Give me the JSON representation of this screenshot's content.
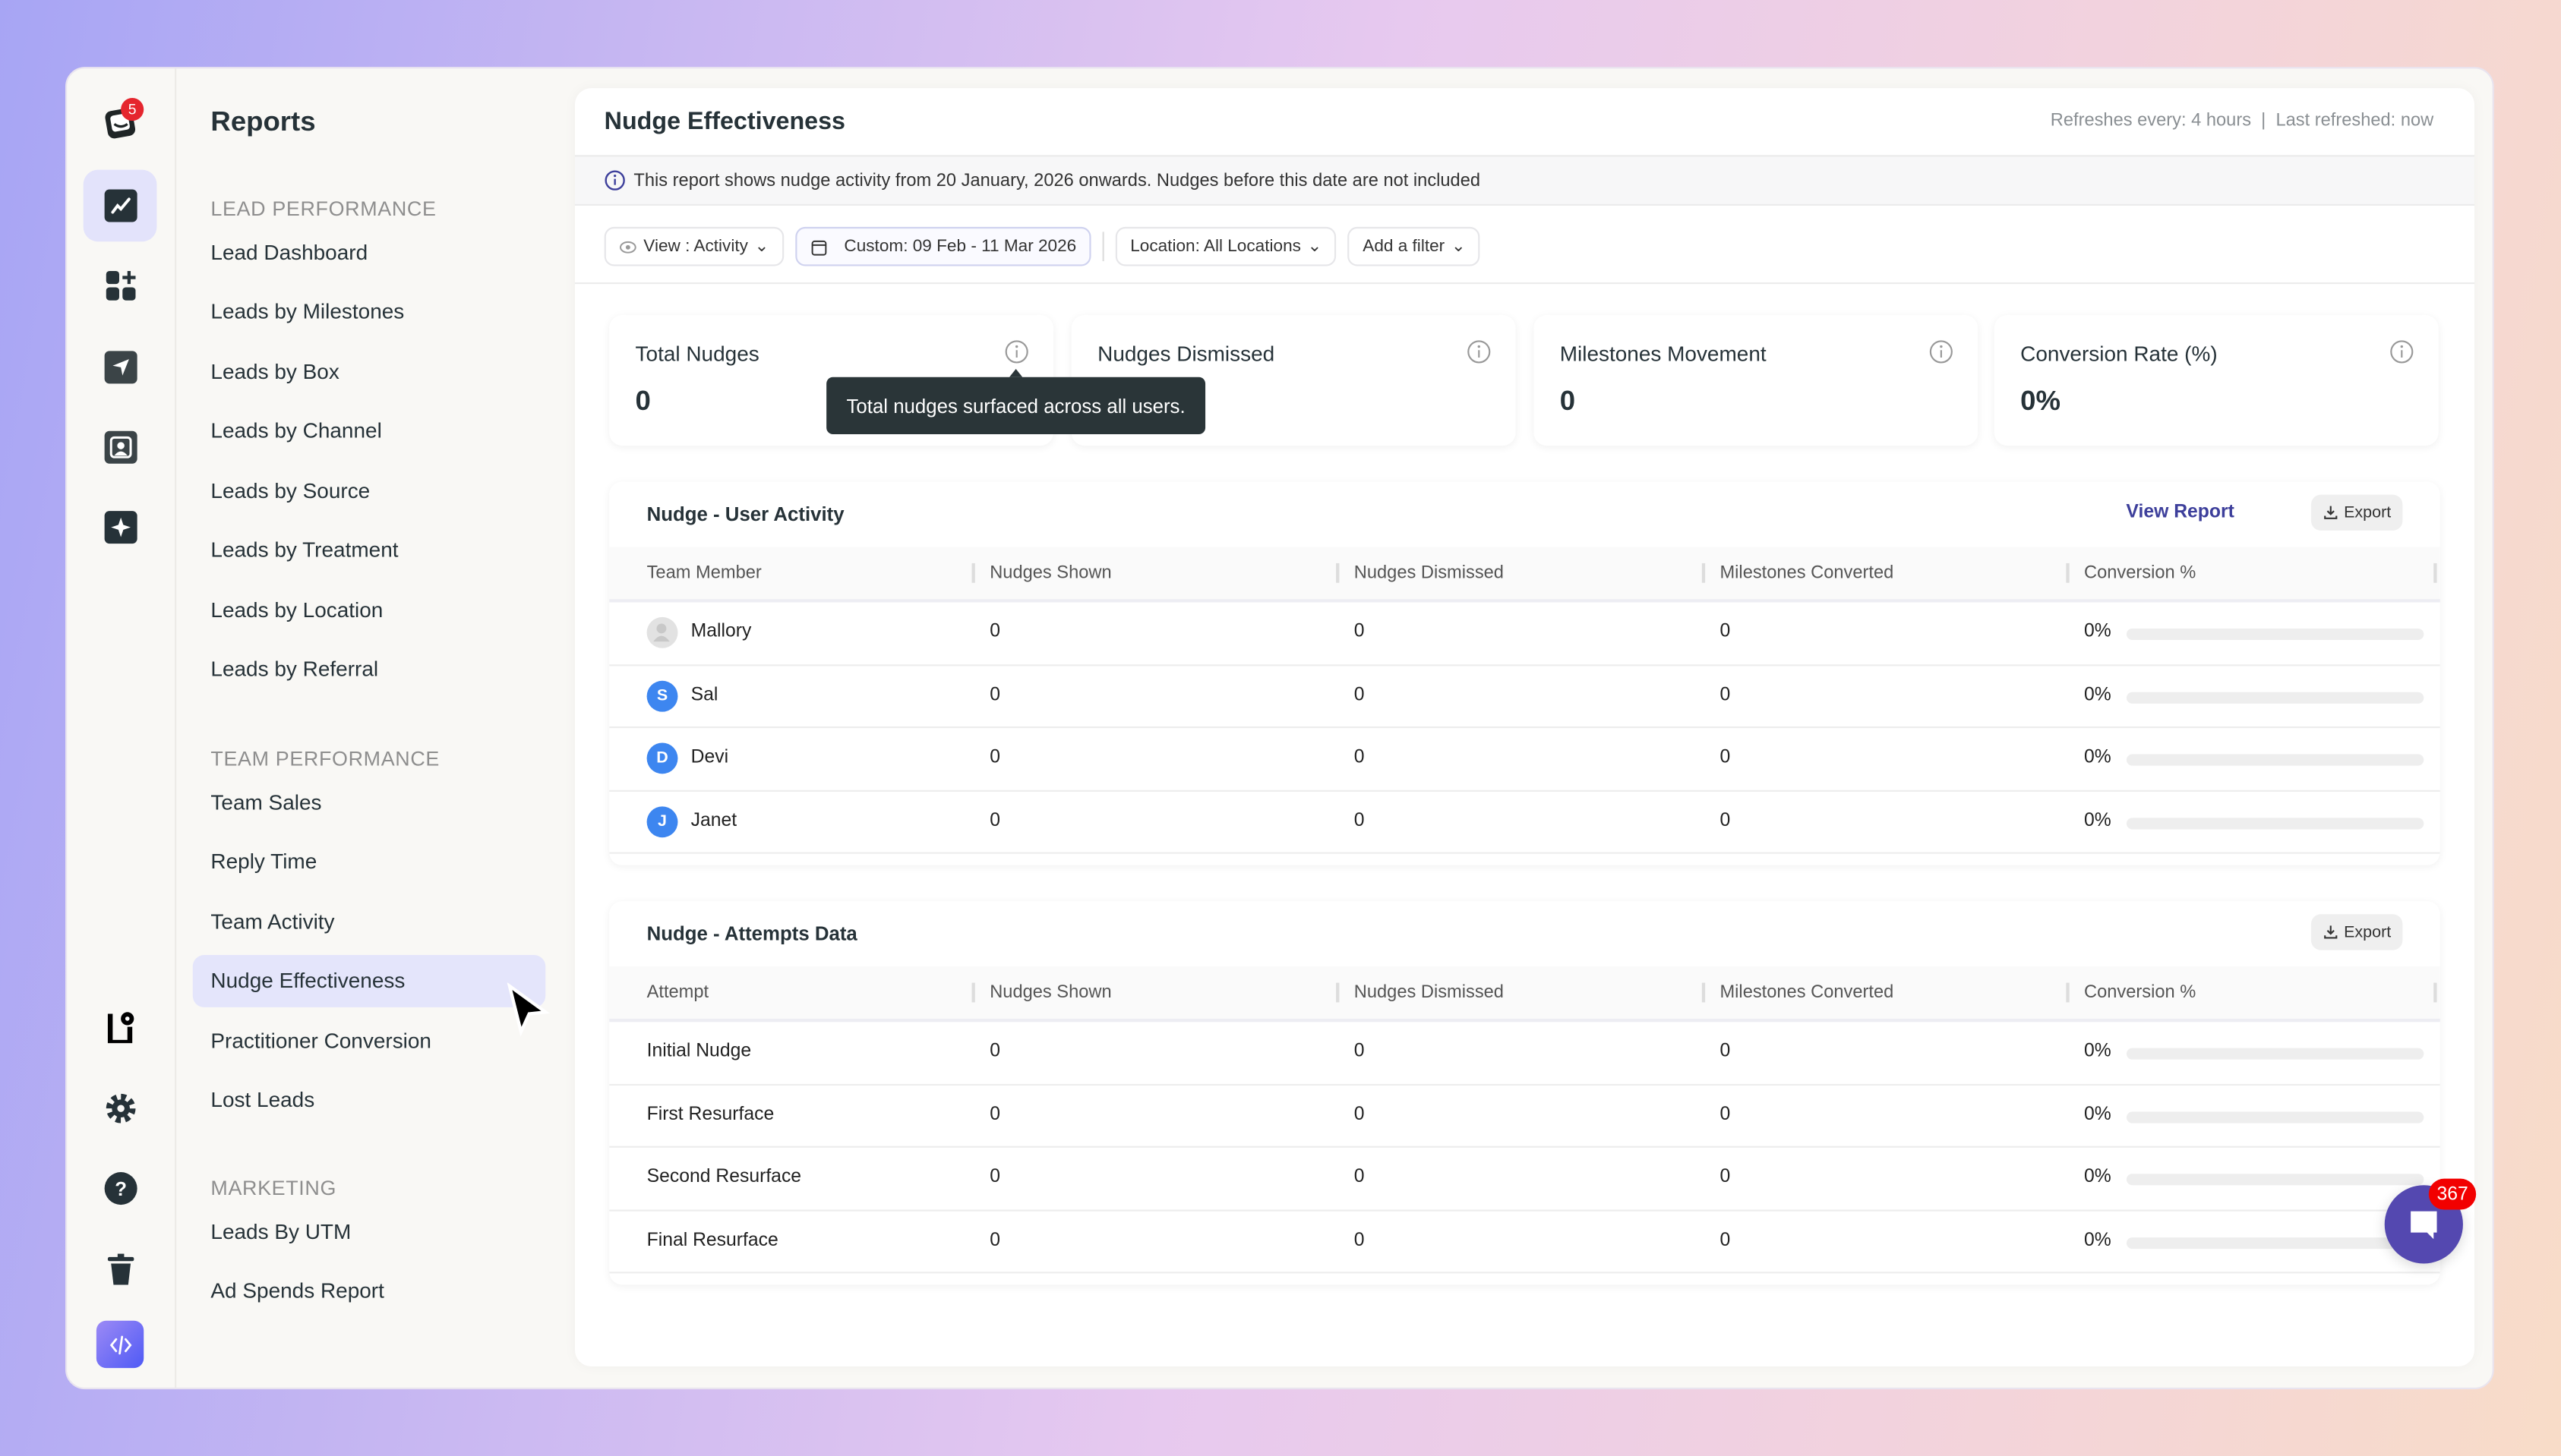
{
  "colors": {
    "accent": "#5448b0",
    "link": "#3d3f9b",
    "active_bg": "#e4e5fb",
    "badge": "#f20000"
  },
  "rail": {
    "logo_badge": "5",
    "icons": [
      "reports-chart-icon",
      "apps-add-icon",
      "send-icon",
      "contact-icon",
      "sparkle-icon",
      "settings-book-icon",
      "gear-icon",
      "help-icon",
      "trash-icon",
      "code-icon"
    ]
  },
  "nav": {
    "title": "Reports",
    "sections": [
      {
        "label": "LEAD PERFORMANCE",
        "items": [
          "Lead Dashboard",
          "Leads by Milestones",
          "Leads by Box",
          "Leads by Channel",
          "Leads by Source",
          "Leads by Treatment",
          "Leads by Location",
          "Leads by Referral"
        ]
      },
      {
        "label": "TEAM PERFORMANCE",
        "items": [
          "Team Sales",
          "Reply Time",
          "Team Activity",
          "Nudge Effectiveness",
          "Practitioner Conversion",
          "Lost Leads"
        ]
      },
      {
        "label": "MARKETING",
        "items": [
          "Leads By UTM",
          "Ad Spends Report"
        ]
      }
    ],
    "active": "Nudge Effectiveness"
  },
  "main": {
    "title": "Nudge Effectiveness",
    "refresh": "Refreshes every: 4 hours  |  Last refreshed: now",
    "banner": "This report shows nudge activity from 20 January, 2026 onwards. Nudges before this date are not included",
    "filters": {
      "view": "View : Activity",
      "date": "Custom: 09 Feb - 11 Mar 2026",
      "location": "Location: All Locations",
      "add": "Add a filter"
    },
    "stats": [
      {
        "label": "Total Nudges",
        "value": "0"
      },
      {
        "label": "Nudges Dismissed",
        "value": ""
      },
      {
        "label": "Milestones Movement",
        "value": "0"
      },
      {
        "label": "Conversion Rate (%)",
        "value": "0%"
      }
    ],
    "tooltip": "Total nudges surfaced across all users.",
    "user_table": {
      "title": "Nudge - User Activity",
      "view_report": "View Report",
      "export": "Export",
      "columns": [
        "Team Member",
        "Nudges Shown",
        "Nudges Dismissed",
        "Milestones Converted",
        "Conversion %"
      ],
      "rows": [
        {
          "name": "Mallory",
          "initial": "",
          "shown": "0",
          "dismissed": "0",
          "converted": "0",
          "pct": "0%",
          "progress": 0
        },
        {
          "name": "Sal",
          "initial": "S",
          "shown": "0",
          "dismissed": "0",
          "converted": "0",
          "pct": "0%",
          "progress": 0
        },
        {
          "name": "Devi",
          "initial": "D",
          "shown": "0",
          "dismissed": "0",
          "converted": "0",
          "pct": "0%",
          "progress": 0
        },
        {
          "name": "Janet",
          "initial": "J",
          "shown": "0",
          "dismissed": "0",
          "converted": "0",
          "pct": "0%",
          "progress": 0
        }
      ]
    },
    "attempt_table": {
      "title": "Nudge - Attempts Data",
      "export": "Export",
      "columns": [
        "Attempt",
        "Nudges Shown",
        "Nudges Dismissed",
        "Milestones Converted",
        "Conversion %"
      ],
      "rows": [
        {
          "name": "Initial Nudge",
          "shown": "0",
          "dismissed": "0",
          "converted": "0",
          "pct": "0%",
          "progress": 0
        },
        {
          "name": "First Resurface",
          "shown": "0",
          "dismissed": "0",
          "converted": "0",
          "pct": "0%",
          "progress": 0
        },
        {
          "name": "Second Resurface",
          "shown": "0",
          "dismissed": "0",
          "converted": "0",
          "pct": "0%",
          "progress": 0
        },
        {
          "name": "Final Resurface",
          "shown": "0",
          "dismissed": "0",
          "converted": "0",
          "pct": "0%",
          "progress": 0
        }
      ]
    }
  },
  "chat": {
    "badge": "367"
  }
}
